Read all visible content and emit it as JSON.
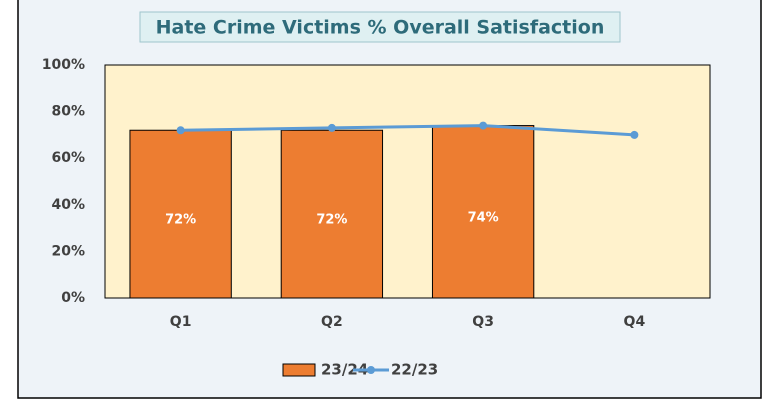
{
  "chart_data": {
    "type": "bar",
    "title": "Hate Crime Victims % Overall Satisfaction",
    "categories": [
      "Q1",
      "Q2",
      "Q3",
      "Q4"
    ],
    "series": [
      {
        "name": "23/24",
        "color": "#ed7d31",
        "type": "bar",
        "values": [
          72,
          72,
          74,
          null
        ],
        "value_labels": [
          "72%",
          "72%",
          "74%",
          null
        ]
      },
      {
        "name": "22/23",
        "color": "#5b9bd5",
        "type": "line",
        "values": [
          72,
          73,
          74,
          70
        ]
      }
    ],
    "ylim": [
      0,
      100
    ],
    "yticks": [
      {
        "value": 0,
        "label": "0%"
      },
      {
        "value": 20,
        "label": "20%"
      },
      {
        "value": 40,
        "label": "40%"
      },
      {
        "value": 60,
        "label": "60%"
      },
      {
        "value": 80,
        "label": "80%"
      },
      {
        "value": 100,
        "label": "100%"
      }
    ],
    "grid": false,
    "legend": "bottom"
  }
}
